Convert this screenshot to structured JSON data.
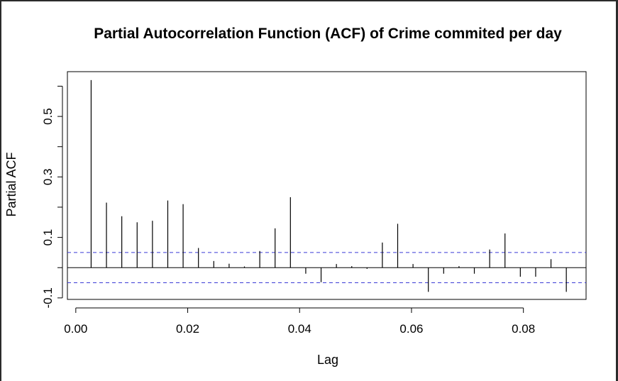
{
  "chart_data": {
    "type": "bar",
    "title": "Partial Autocorrelation Function (ACF) of Crime commited per day",
    "xlabel": "Lag",
    "ylabel": "Partial ACF",
    "xlim": [
      -0.0015,
      0.0912
    ],
    "ylim": [
      -0.105,
      0.648
    ],
    "x_ticks": [
      0.0,
      0.02,
      0.04,
      0.06,
      0.08
    ],
    "x_tick_labels": [
      "0.00",
      "0.02",
      "0.04",
      "0.06",
      "0.08"
    ],
    "y_ticks": [
      -0.1,
      0.0,
      0.1,
      0.2,
      0.3,
      0.4,
      0.5,
      0.6
    ],
    "y_tick_labels": [
      "-0.1",
      "",
      "0.1",
      "",
      "0.3",
      "",
      "0.5",
      ""
    ],
    "confidence_limits": [
      0.05,
      -0.05
    ],
    "confidence_color": "#3b3bd6",
    "line_color": "#000000",
    "x": [
      0.00274,
      0.00548,
      0.00822,
      0.01096,
      0.0137,
      0.01644,
      0.01918,
      0.02192,
      0.02466,
      0.0274,
      0.03014,
      0.03288,
      0.03562,
      0.03836,
      0.0411,
      0.04384,
      0.04658,
      0.04932,
      0.05205,
      0.05479,
      0.05753,
      0.06027,
      0.06301,
      0.06575,
      0.06849,
      0.07123,
      0.07397,
      0.07671,
      0.07945,
      0.08219,
      0.08493,
      0.08767
    ],
    "values": [
      0.62,
      0.215,
      0.17,
      0.15,
      0.155,
      0.222,
      0.21,
      0.065,
      0.022,
      0.013,
      0.004,
      0.055,
      0.13,
      0.233,
      -0.02,
      -0.048,
      0.012,
      0.005,
      -0.004,
      0.083,
      0.145,
      0.012,
      -0.08,
      -0.02,
      0.005,
      -0.02,
      0.06,
      0.113,
      -0.03,
      -0.03,
      0.028,
      -0.08
    ]
  }
}
